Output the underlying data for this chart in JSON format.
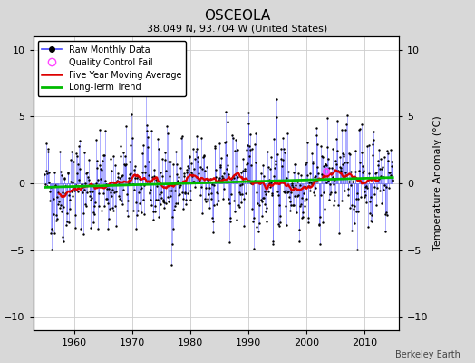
{
  "title": "OSCEOLA",
  "subtitle": "38.049 N, 93.704 W (United States)",
  "ylabel": "Temperature Anomaly (°C)",
  "credit": "Berkeley Earth",
  "xlim": [
    1953,
    2016
  ],
  "ylim": [
    -11,
    11
  ],
  "yticks": [
    -10,
    -5,
    0,
    5,
    10
  ],
  "xticks": [
    1960,
    1970,
    1980,
    1990,
    2000,
    2010
  ],
  "outer_bg_color": "#d8d8d8",
  "plot_bg_color": "#ffffff",
  "line_color_raw": "#4444ff",
  "line_color_avg": "#dd0000",
  "line_color_trend": "#00bb00",
  "qc_color": "#ff44ff",
  "marker_color": "#000000",
  "seed": 42,
  "start_year": 1955.0,
  "end_year": 2014.92
}
